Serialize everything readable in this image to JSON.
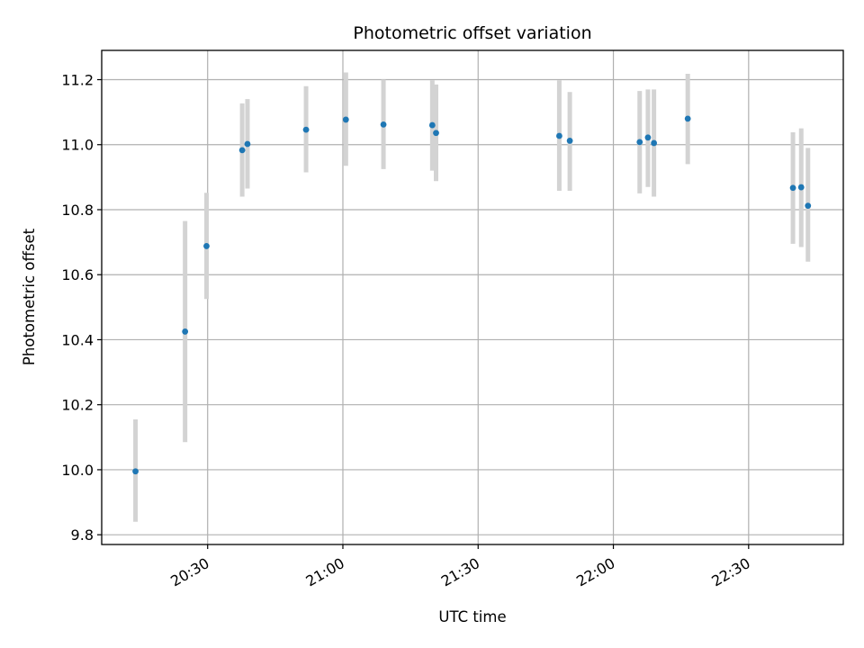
{
  "chart_data": {
    "type": "scatter",
    "title": "Photometric offset variation",
    "xlabel": "UTC time",
    "ylabel": "Photometric offset",
    "xlim": [
      "20:06:30",
      "22:51:00"
    ],
    "ylim": [
      9.77,
      11.29
    ],
    "grid": true,
    "x_ticks": [
      "20:30",
      "21:00",
      "21:30",
      "22:00",
      "22:30"
    ],
    "y_ticks": [
      "9.8",
      "10.0",
      "10.2",
      "10.4",
      "10.6",
      "10.8",
      "11.0",
      "11.2"
    ],
    "error_bar_color": "#d3d3d3",
    "point_color": "#1f77b4",
    "points": [
      {
        "t": "20:14:00",
        "y": 9.995,
        "ylo": 9.84,
        "yhi": 10.155
      },
      {
        "t": "20:25:00",
        "y": 10.425,
        "ylo": 10.085,
        "yhi": 10.765
      },
      {
        "t": "20:29:45",
        "y": 10.688,
        "ylo": 10.525,
        "yhi": 10.852
      },
      {
        "t": "20:37:40",
        "y": 10.983,
        "ylo": 10.84,
        "yhi": 11.127
      },
      {
        "t": "20:38:50",
        "y": 11.002,
        "ylo": 10.865,
        "yhi": 11.14
      },
      {
        "t": "20:51:50",
        "y": 11.046,
        "ylo": 10.915,
        "yhi": 11.18
      },
      {
        "t": "21:00:40",
        "y": 11.077,
        "ylo": 10.935,
        "yhi": 11.222
      },
      {
        "t": "21:09:00",
        "y": 11.062,
        "ylo": 10.925,
        "yhi": 11.2
      },
      {
        "t": "21:19:50",
        "y": 11.06,
        "ylo": 10.92,
        "yhi": 11.198
      },
      {
        "t": "21:20:40",
        "y": 11.036,
        "ylo": 10.888,
        "yhi": 11.185
      },
      {
        "t": "21:48:00",
        "y": 11.027,
        "ylo": 10.858,
        "yhi": 11.198
      },
      {
        "t": "21:50:20",
        "y": 11.012,
        "ylo": 10.858,
        "yhi": 11.162
      },
      {
        "t": "22:05:50",
        "y": 11.008,
        "ylo": 10.85,
        "yhi": 11.165
      },
      {
        "t": "22:07:40",
        "y": 11.022,
        "ylo": 10.87,
        "yhi": 11.17
      },
      {
        "t": "22:09:00",
        "y": 11.005,
        "ylo": 10.84,
        "yhi": 11.17
      },
      {
        "t": "22:16:30",
        "y": 11.08,
        "ylo": 10.94,
        "yhi": 11.218
      },
      {
        "t": "22:39:50",
        "y": 10.867,
        "ylo": 10.695,
        "yhi": 11.038
      },
      {
        "t": "22:41:40",
        "y": 10.869,
        "ylo": 10.685,
        "yhi": 11.05
      },
      {
        "t": "22:43:10",
        "y": 10.812,
        "ylo": 10.64,
        "yhi": 10.99
      }
    ]
  }
}
